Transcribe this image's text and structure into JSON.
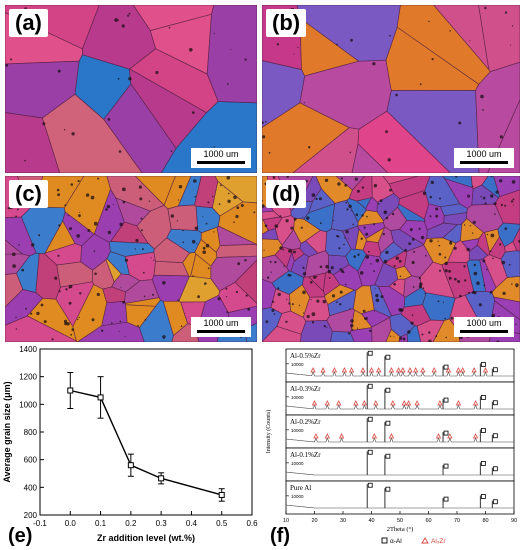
{
  "micrographs": [
    {
      "label": "(a)",
      "scale_bar": "1000 um",
      "palette": [
        "#c8356f",
        "#d24486",
        "#b83a8c",
        "#9a3fa5",
        "#e0508a",
        "#cc4a6a",
        "#2a76c8",
        "#a34bb0",
        "#d0627a"
      ]
    },
    {
      "label": "(b)",
      "scale_bar": "1000 um",
      "palette": [
        "#d83a7a",
        "#e0458c",
        "#c6388a",
        "#e07a2a",
        "#7a5ac2",
        "#3b78d0",
        "#d0508c",
        "#b84aa0"
      ]
    },
    {
      "label": "(c)",
      "scale_bar": "1000 um",
      "palette": [
        "#c2407a",
        "#e08a22",
        "#9b3fb0",
        "#d44a8c",
        "#3c7ccc",
        "#b04a9c",
        "#cc5e7a",
        "#e0a030"
      ]
    },
    {
      "label": "(d)",
      "scale_bar": "1000 um",
      "palette": [
        "#7a4ab8",
        "#c43d82",
        "#5a62c8",
        "#d8508a",
        "#3a70c8",
        "#b04aa0",
        "#e08a2a",
        "#9a3fb4"
      ]
    }
  ],
  "chart_data": [
    {
      "type": "line",
      "panel_label": "(e)",
      "xlabel": "Zr addition level (wt.%)",
      "ylabel": "Average grain size (μm)",
      "xlim": [
        -0.1,
        0.6
      ],
      "ylim": [
        200,
        1400
      ],
      "x_ticks": [
        "-0.1",
        "0.0",
        "0.1",
        "0.2",
        "0.3",
        "0.4",
        "0.5",
        "0.6"
      ],
      "y_ticks": [
        "200",
        "400",
        "600",
        "800",
        "1000",
        "1200",
        "1400"
      ],
      "series": [
        {
          "x": [
            0.0,
            0.1,
            0.2,
            0.3,
            0.5
          ],
          "y": [
            1100,
            1050,
            560,
            465,
            345
          ],
          "err": [
            130,
            150,
            80,
            40,
            45
          ],
          "color": "#000000",
          "marker": "open-square"
        }
      ]
    },
    {
      "type": "line",
      "panel_label": "(f)",
      "xlabel": "2Theta (°)",
      "ylabel": "Intensity (Counts)",
      "xlim": [
        10,
        90
      ],
      "x_ticks": [
        "10",
        "20",
        "30",
        "40",
        "50",
        "60",
        "70",
        "80",
        "90"
      ],
      "y_tick_label": "10000",
      "legend": [
        {
          "name": "α-Al",
          "marker": "open-square"
        },
        {
          "name": "Al₃Zr",
          "marker": "open-triangle",
          "color": "#d9433a"
        }
      ],
      "series": [
        {
          "name": "Al-0.5%Zr",
          "peaks_alpha_al": [
            38.5,
            44.7,
            65.1,
            78.2,
            82.4
          ],
          "peaks_al3zr": [
            19.5,
            23.0,
            27.0,
            30.5,
            33.0,
            37.0,
            40.0,
            42.5,
            47.0,
            49.5,
            51.0,
            53.5,
            55.5,
            58.0,
            62.0,
            67.0,
            70.5,
            72.0,
            76.0,
            80.0
          ]
        },
        {
          "name": "Al-0.3%Zr",
          "peaks_alpha_al": [
            38.5,
            44.7,
            65.1,
            78.2,
            82.4
          ],
          "peaks_al3zr": [
            20.0,
            24.5,
            28.5,
            34.5,
            37.5,
            41.5,
            47.5,
            51.5,
            53.0,
            56.0,
            64.0,
            70.5,
            76.5
          ]
        },
        {
          "name": "Al-0.2%Zr",
          "peaks_alpha_al": [
            38.5,
            44.7,
            65.1,
            78.2,
            82.4
          ],
          "peaks_al3zr": [
            20.5,
            24.5,
            29.5,
            41.0,
            47.0,
            63.5,
            67.5,
            76.5
          ]
        },
        {
          "name": "Al-0.1%Zr",
          "peaks_alpha_al": [
            38.5,
            44.7,
            65.1,
            78.2,
            82.4
          ],
          "peaks_al3zr": []
        },
        {
          "name": "Pure Al",
          "peaks_alpha_al": [
            38.5,
            44.7,
            65.1,
            78.2,
            82.4
          ],
          "peaks_al3zr": []
        }
      ]
    }
  ]
}
